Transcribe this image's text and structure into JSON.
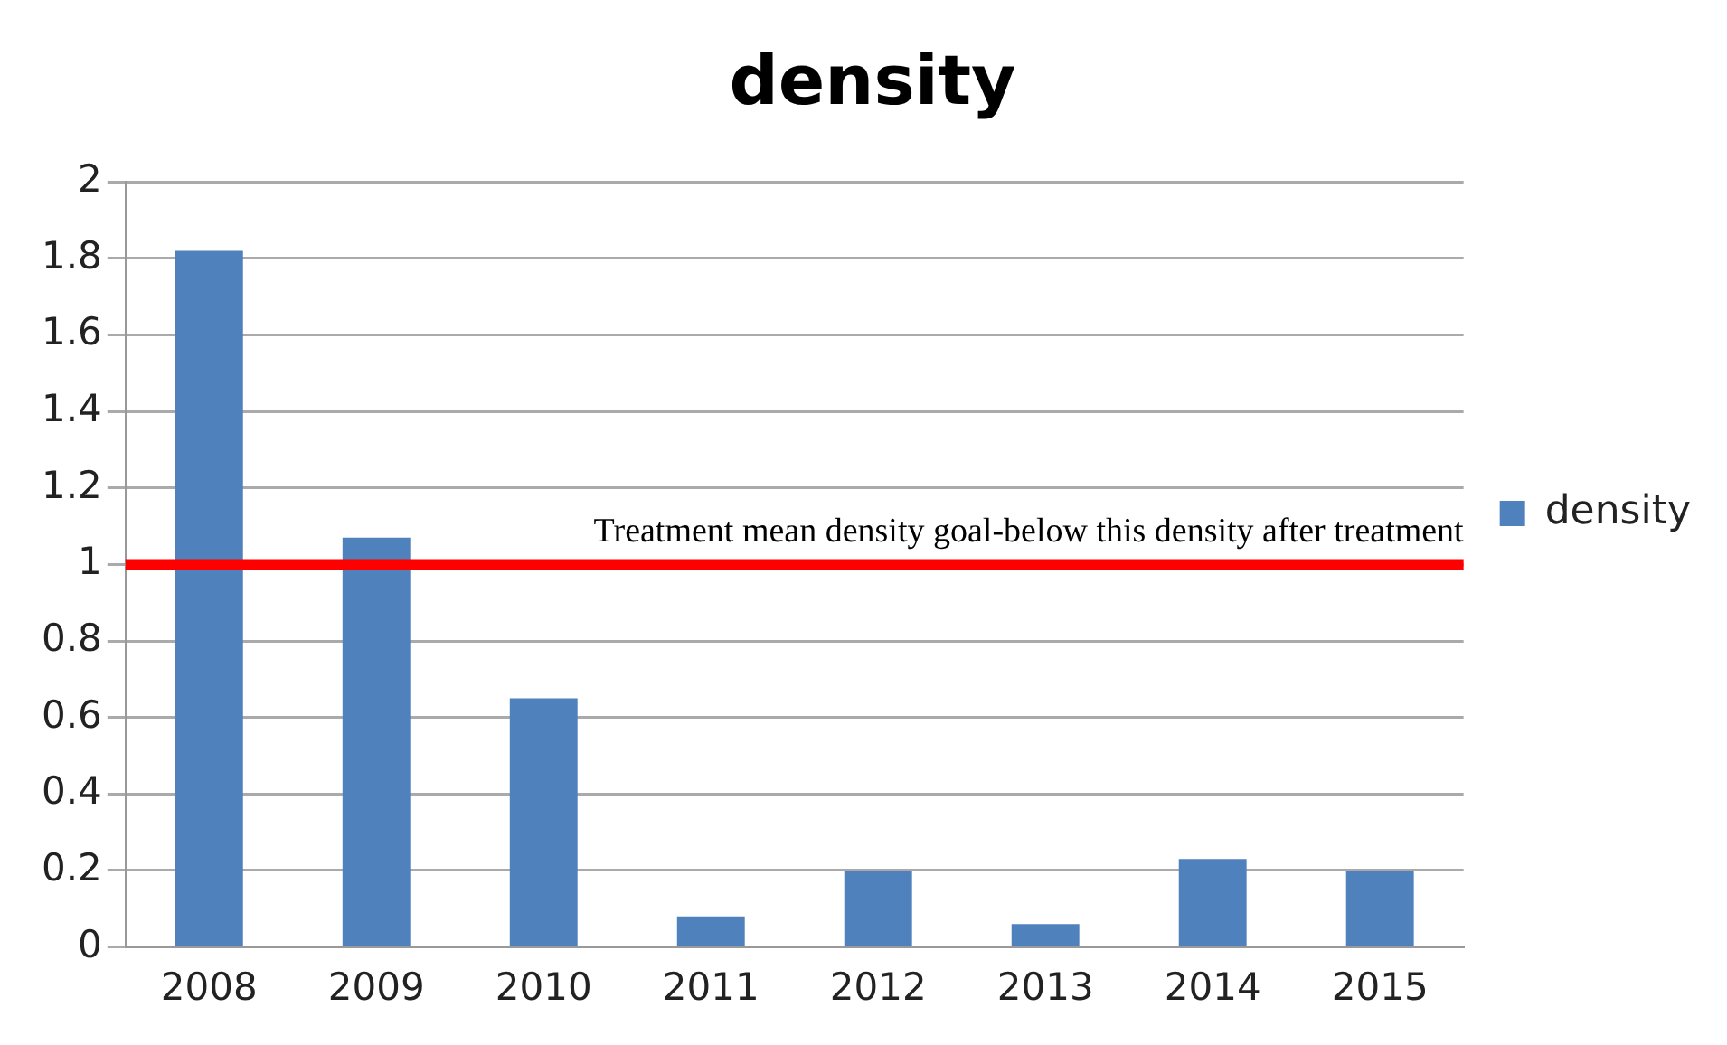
{
  "chart_data": {
    "type": "bar",
    "title": "density",
    "categories": [
      "2008",
      "2009",
      "2010",
      "2011",
      "2012",
      "2013",
      "2014",
      "2015"
    ],
    "series": [
      {
        "name": "density",
        "color": "#4f81bd",
        "values": [
          1.82,
          1.07,
          0.65,
          0.08,
          0.2,
          0.06,
          0.23,
          0.2
        ]
      }
    ],
    "ylim": [
      0,
      2
    ],
    "yticks": [
      0,
      0.2,
      0.4,
      0.6,
      0.8,
      1,
      1.2,
      1.4,
      1.6,
      1.8,
      2
    ],
    "grid": "y",
    "legend": "right",
    "ref_lines": [
      {
        "axis": "y",
        "value": 1,
        "label": "Treatment mean density goal-below this density after treatment",
        "color": "#ff0000"
      }
    ]
  }
}
